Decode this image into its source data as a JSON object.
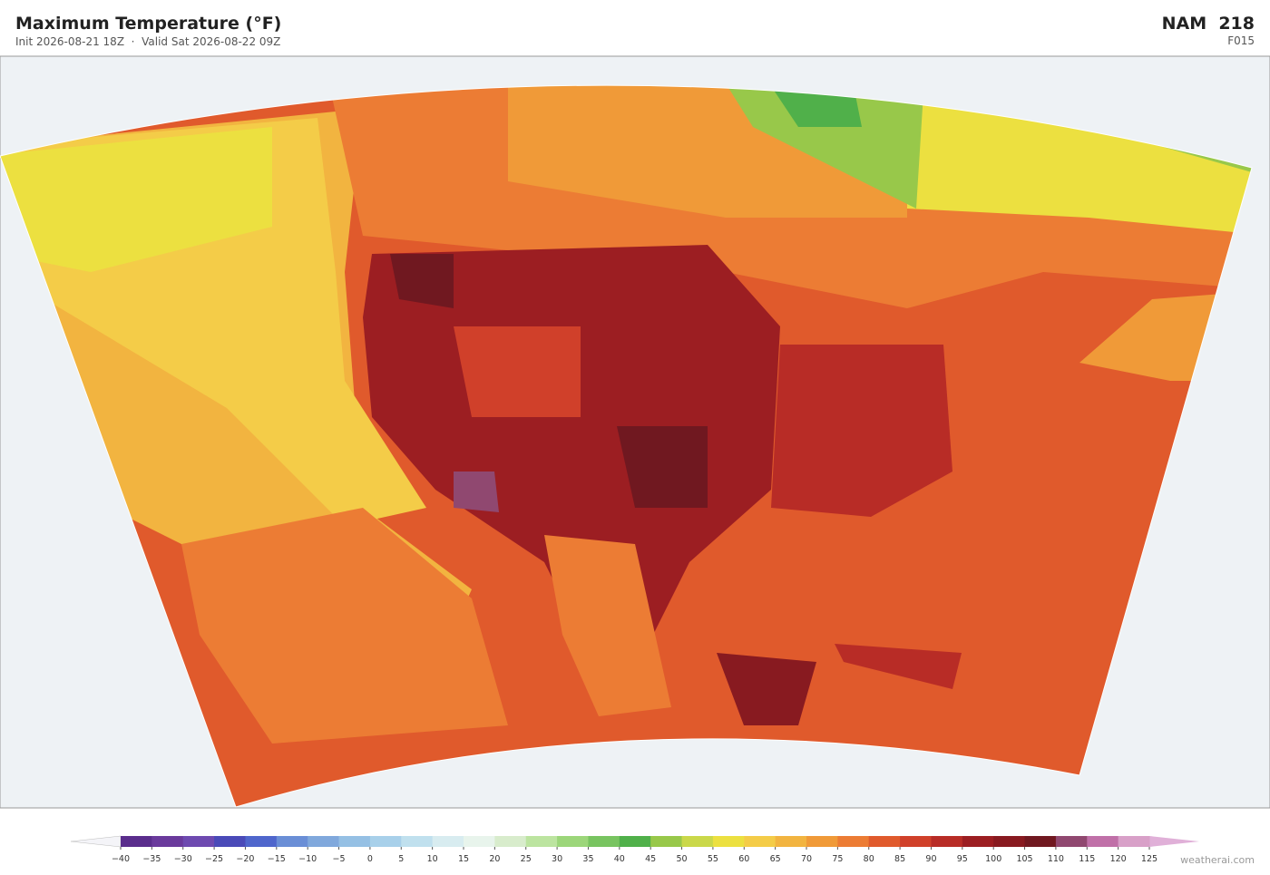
{
  "header": {
    "title": "Maximum Temperature  (°F)",
    "subtitle": "Init 2026-08-21 18Z  ·  Valid Sat 2026-08-22 09Z",
    "model": "NAM  218",
    "forecast_hour": "F015"
  },
  "colorbar": {
    "ticks": [
      {
        "value": -40,
        "label": "−40"
      },
      {
        "value": -35,
        "label": "−35"
      },
      {
        "value": -30,
        "label": "−30"
      },
      {
        "value": -25,
        "label": "−25"
      },
      {
        "value": -20,
        "label": "−20"
      },
      {
        "value": -15,
        "label": "−15"
      },
      {
        "value": -10,
        "label": "−10"
      },
      {
        "value": -5,
        "label": "−5"
      },
      0,
      5,
      10,
      15,
      20,
      25,
      30,
      35,
      40,
      45,
      50,
      55,
      60,
      65,
      70,
      75,
      80,
      85,
      90,
      95,
      100,
      105,
      110,
      115,
      120,
      125
    ],
    "colors": [
      "#5a2d8c",
      "#6a3a9c",
      "#6e4ab0",
      "#4a4ab8",
      "#4f66cc",
      "#6a8ed6",
      "#80a8dc",
      "#95c0e4",
      "#a8d0ea",
      "#c0e0ee",
      "#d8ecf0",
      "#e8f4ec",
      "#d8eccc",
      "#bce4a0",
      "#9cd67a",
      "#78c460",
      "#50b04a",
      "#98c84a",
      "#cad84a",
      "#ece040",
      "#f4cc48",
      "#f2b440",
      "#f09a38",
      "#ec7c34",
      "#e05a2c",
      "#d0402a",
      "#b82c26",
      "#9c1e22",
      "#881a20",
      "#701820",
      "#904870",
      "#c070a8",
      "#d8a0c8"
    ],
    "under_color": "#f4f4f8",
    "over_color": "#e0b0d8"
  },
  "credit": "weatherai.com"
}
